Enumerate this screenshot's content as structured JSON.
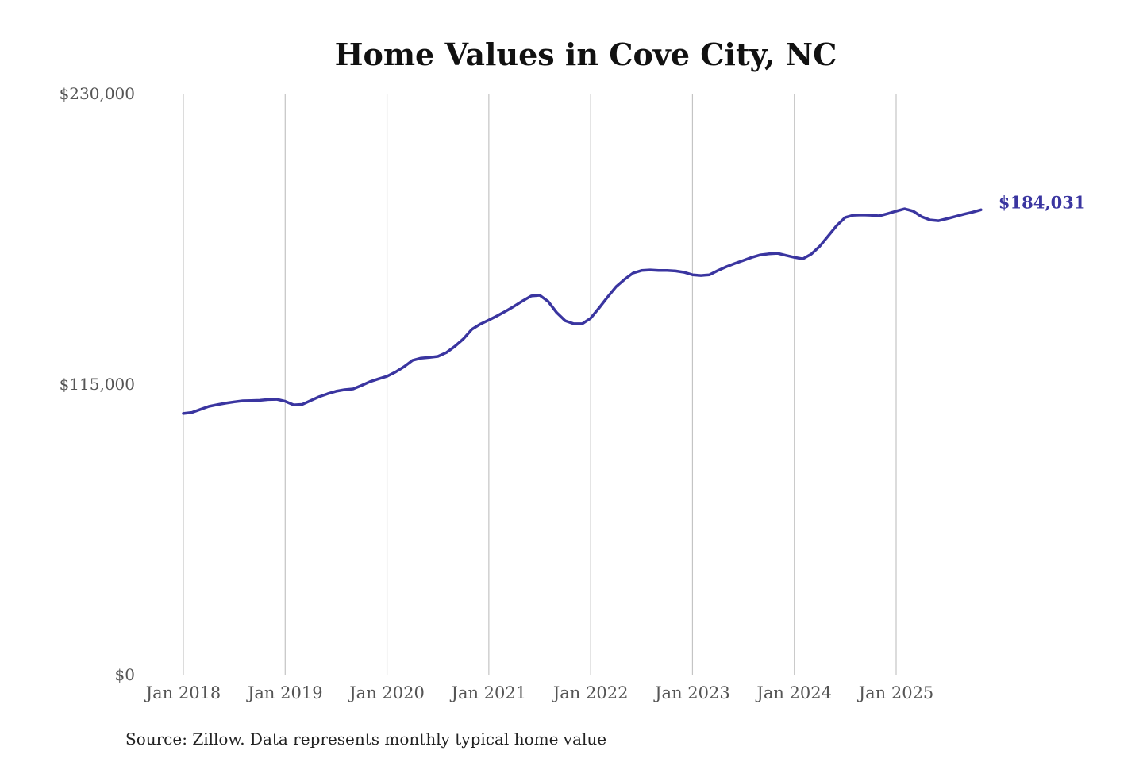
{
  "chart_data": {
    "type": "line",
    "title": "Home Values in Cove City, NC",
    "xlabel": "",
    "ylabel": "",
    "ylim": [
      0,
      230000
    ],
    "yticks": [
      0,
      115000,
      230000
    ],
    "ytick_labels": [
      "$0",
      "$115,000",
      "$230,000"
    ],
    "xticks_labels": [
      "Jan 2018",
      "Jan 2019",
      "Jan 2020",
      "Jan 2021",
      "Jan 2022",
      "Jan 2023",
      "Jan 2024",
      "Jan 2025"
    ],
    "x_start": "Jan 2018",
    "x_end": "Nov 2025",
    "grid": "vertical",
    "series": [
      {
        "name": "Typical home value",
        "color": "#3a35a0",
        "values": [
          103400,
          103800,
          105000,
          106200,
          106900,
          107500,
          108000,
          108400,
          108500,
          108600,
          108900,
          109000,
          108200,
          106800,
          107000,
          108500,
          110000,
          111200,
          112200,
          112800,
          113100,
          114500,
          116000,
          117100,
          118100,
          119800,
          121900,
          124400,
          125300,
          125600,
          126000,
          127500,
          130000,
          132900,
          136700,
          138800,
          140400,
          142100,
          143900,
          145900,
          148000,
          149900,
          150200,
          147700,
          143300,
          140100,
          138900,
          138900,
          141100,
          145200,
          149500,
          153600,
          156500,
          159000,
          160000,
          160200,
          160000,
          160000,
          159800,
          159300,
          158300,
          158000,
          158300,
          160000,
          161500,
          162800,
          164000,
          165200,
          166200,
          166600,
          166800,
          166000,
          165200,
          164600,
          166500,
          169600,
          173700,
          177800,
          181000,
          181900,
          182000,
          181900,
          181600,
          182500,
          183500,
          184400,
          183500,
          181300,
          180000,
          179700,
          180500,
          181400,
          182300,
          183100,
          184031
        ]
      }
    ],
    "end_label": "$184,031",
    "source": "Source: Zillow. Data represents monthly typical home value"
  }
}
